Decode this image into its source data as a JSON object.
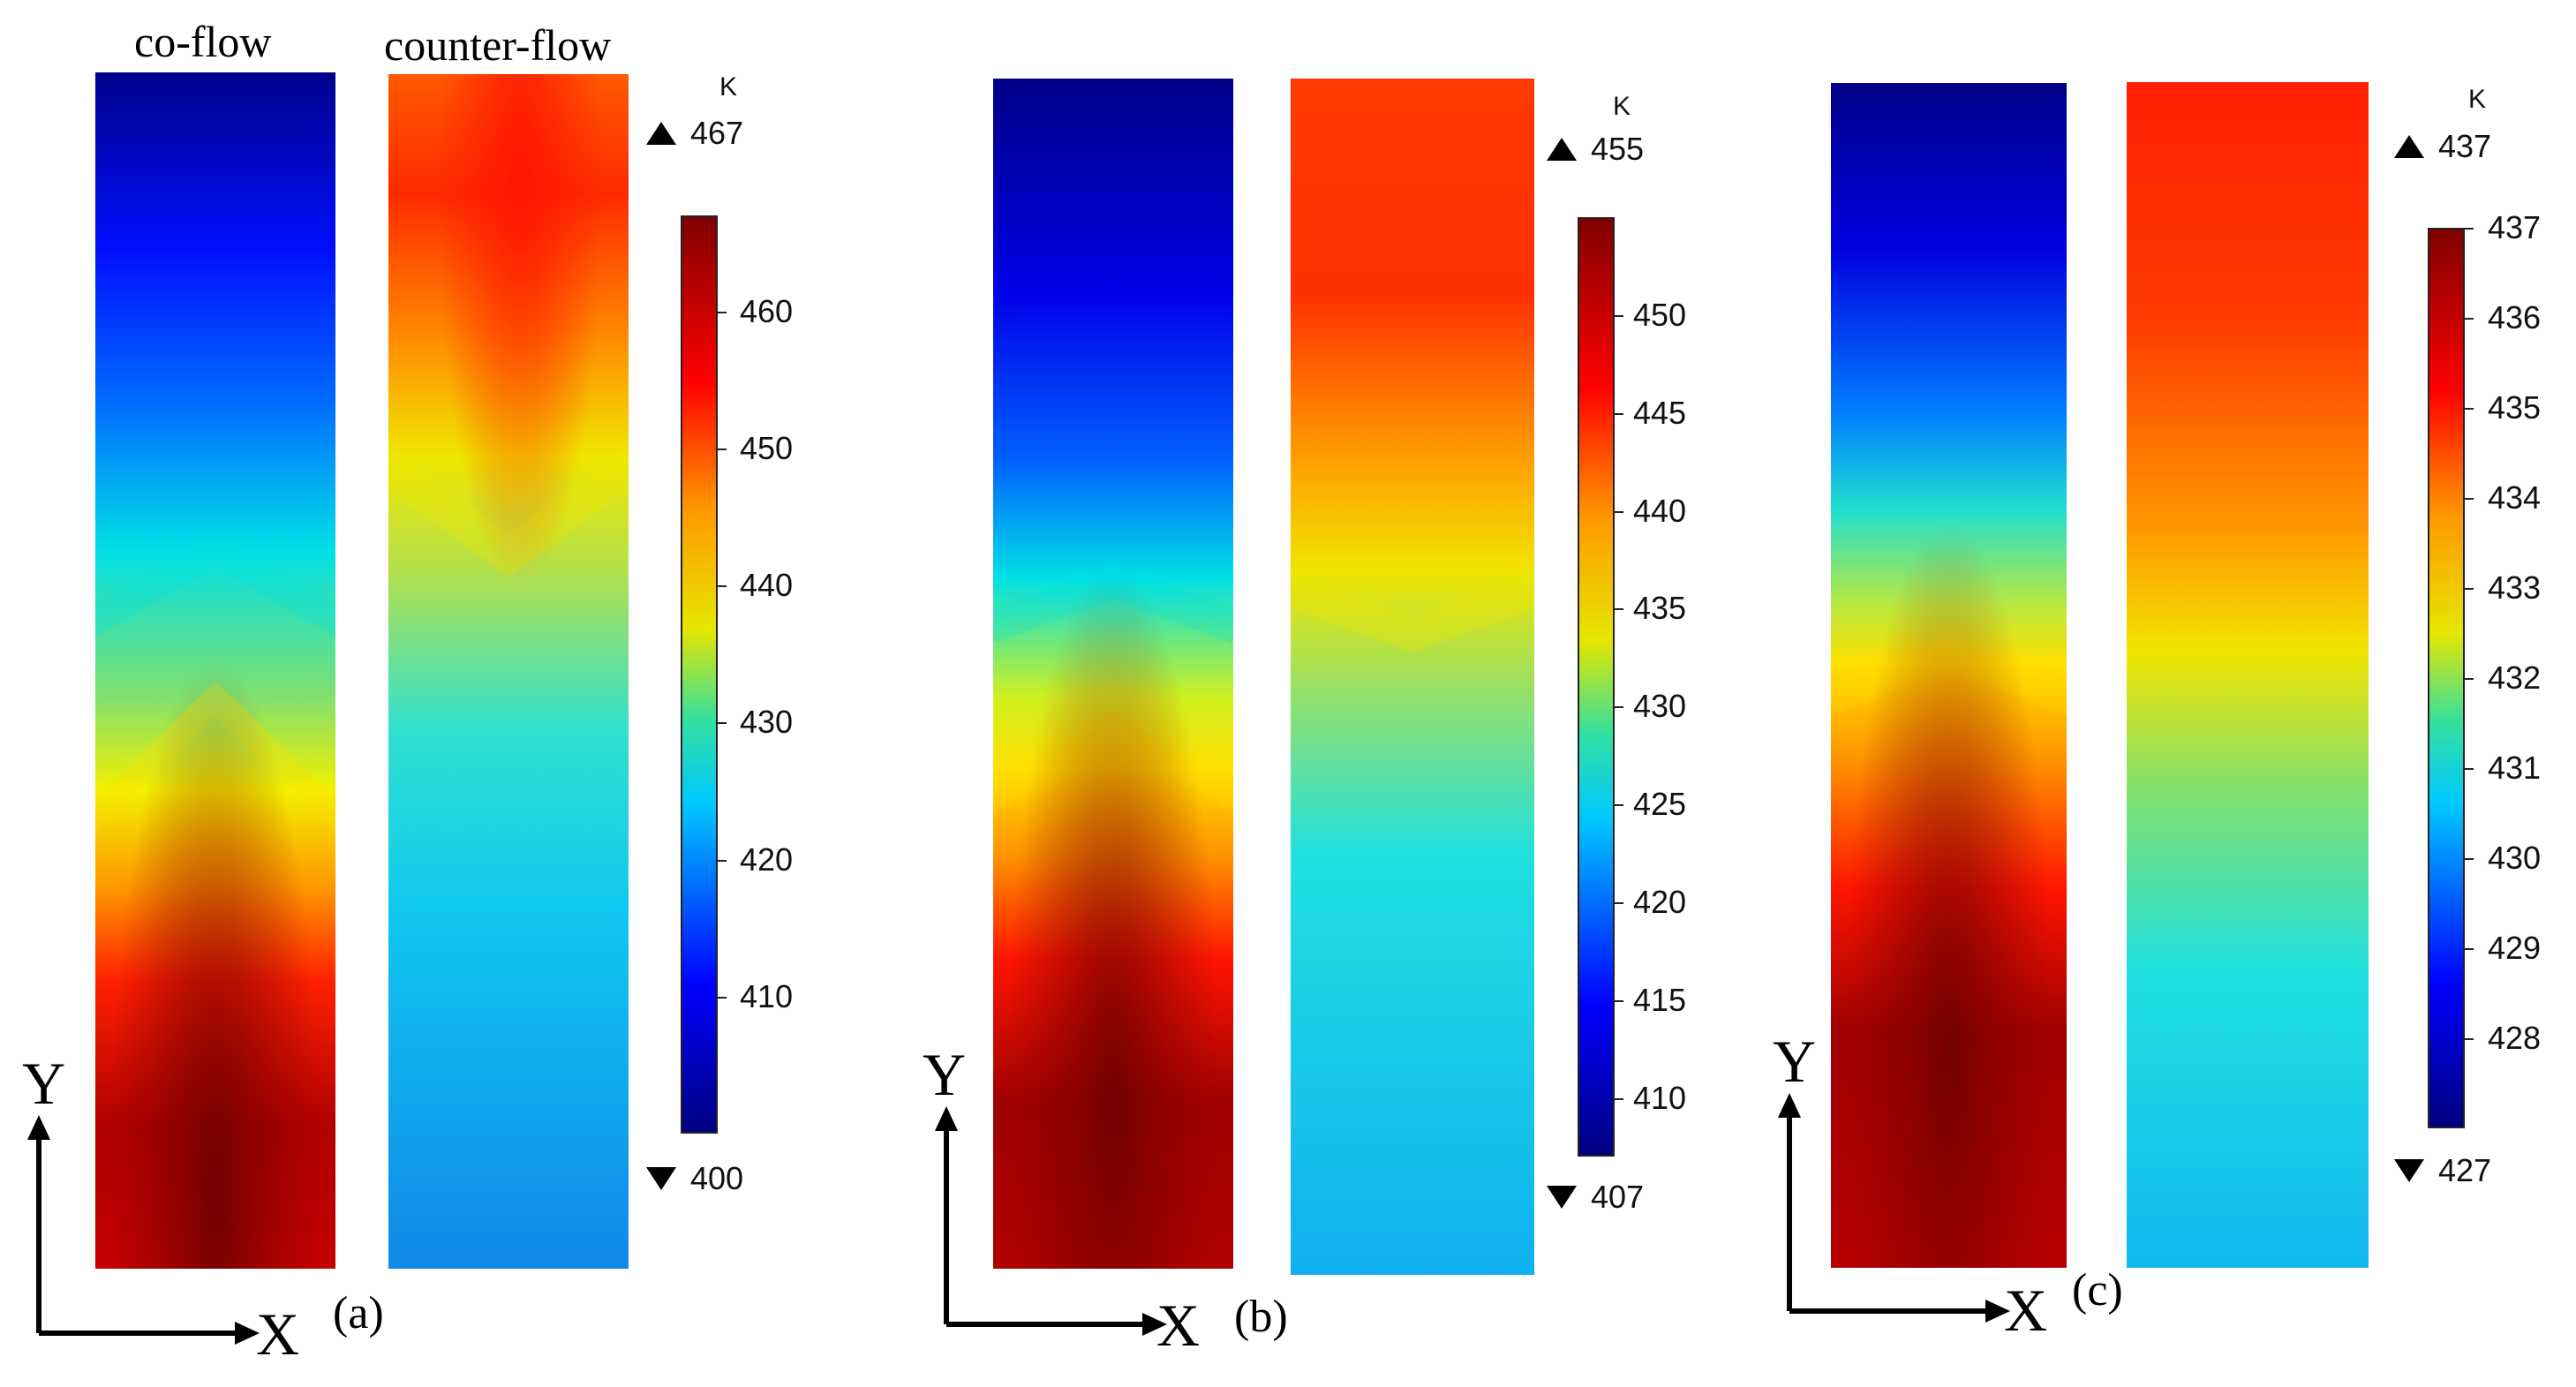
{
  "column_titles": {
    "co_flow": "co-flow",
    "counter_flow": "counter-flow"
  },
  "unit_label": "K",
  "axis_labels": {
    "x": "X",
    "y": "Y"
  },
  "panels": [
    {
      "label": "(a)",
      "max": "467",
      "min": "400",
      "ticks": [
        "460",
        "450",
        "440",
        "430",
        "420",
        "410"
      ],
      "tick_values": [
        460,
        450,
        440,
        430,
        420,
        410
      ],
      "range": [
        400,
        467
      ]
    },
    {
      "label": "(b)",
      "max": "455",
      "min": "407",
      "ticks": [
        "450",
        "445",
        "440",
        "435",
        "430",
        "425",
        "420",
        "415",
        "410"
      ],
      "tick_values": [
        450,
        445,
        440,
        435,
        430,
        425,
        420,
        415,
        410
      ],
      "range": [
        407,
        455
      ]
    },
    {
      "label": "(c)",
      "max": "437",
      "min": "427",
      "ticks": [
        "437",
        "436",
        "435",
        "434",
        "433",
        "432",
        "431",
        "430",
        "429",
        "428"
      ],
      "tick_values": [
        437,
        436,
        435,
        434,
        433,
        432,
        431,
        430,
        429,
        428
      ],
      "range": [
        427,
        437
      ]
    }
  ]
}
